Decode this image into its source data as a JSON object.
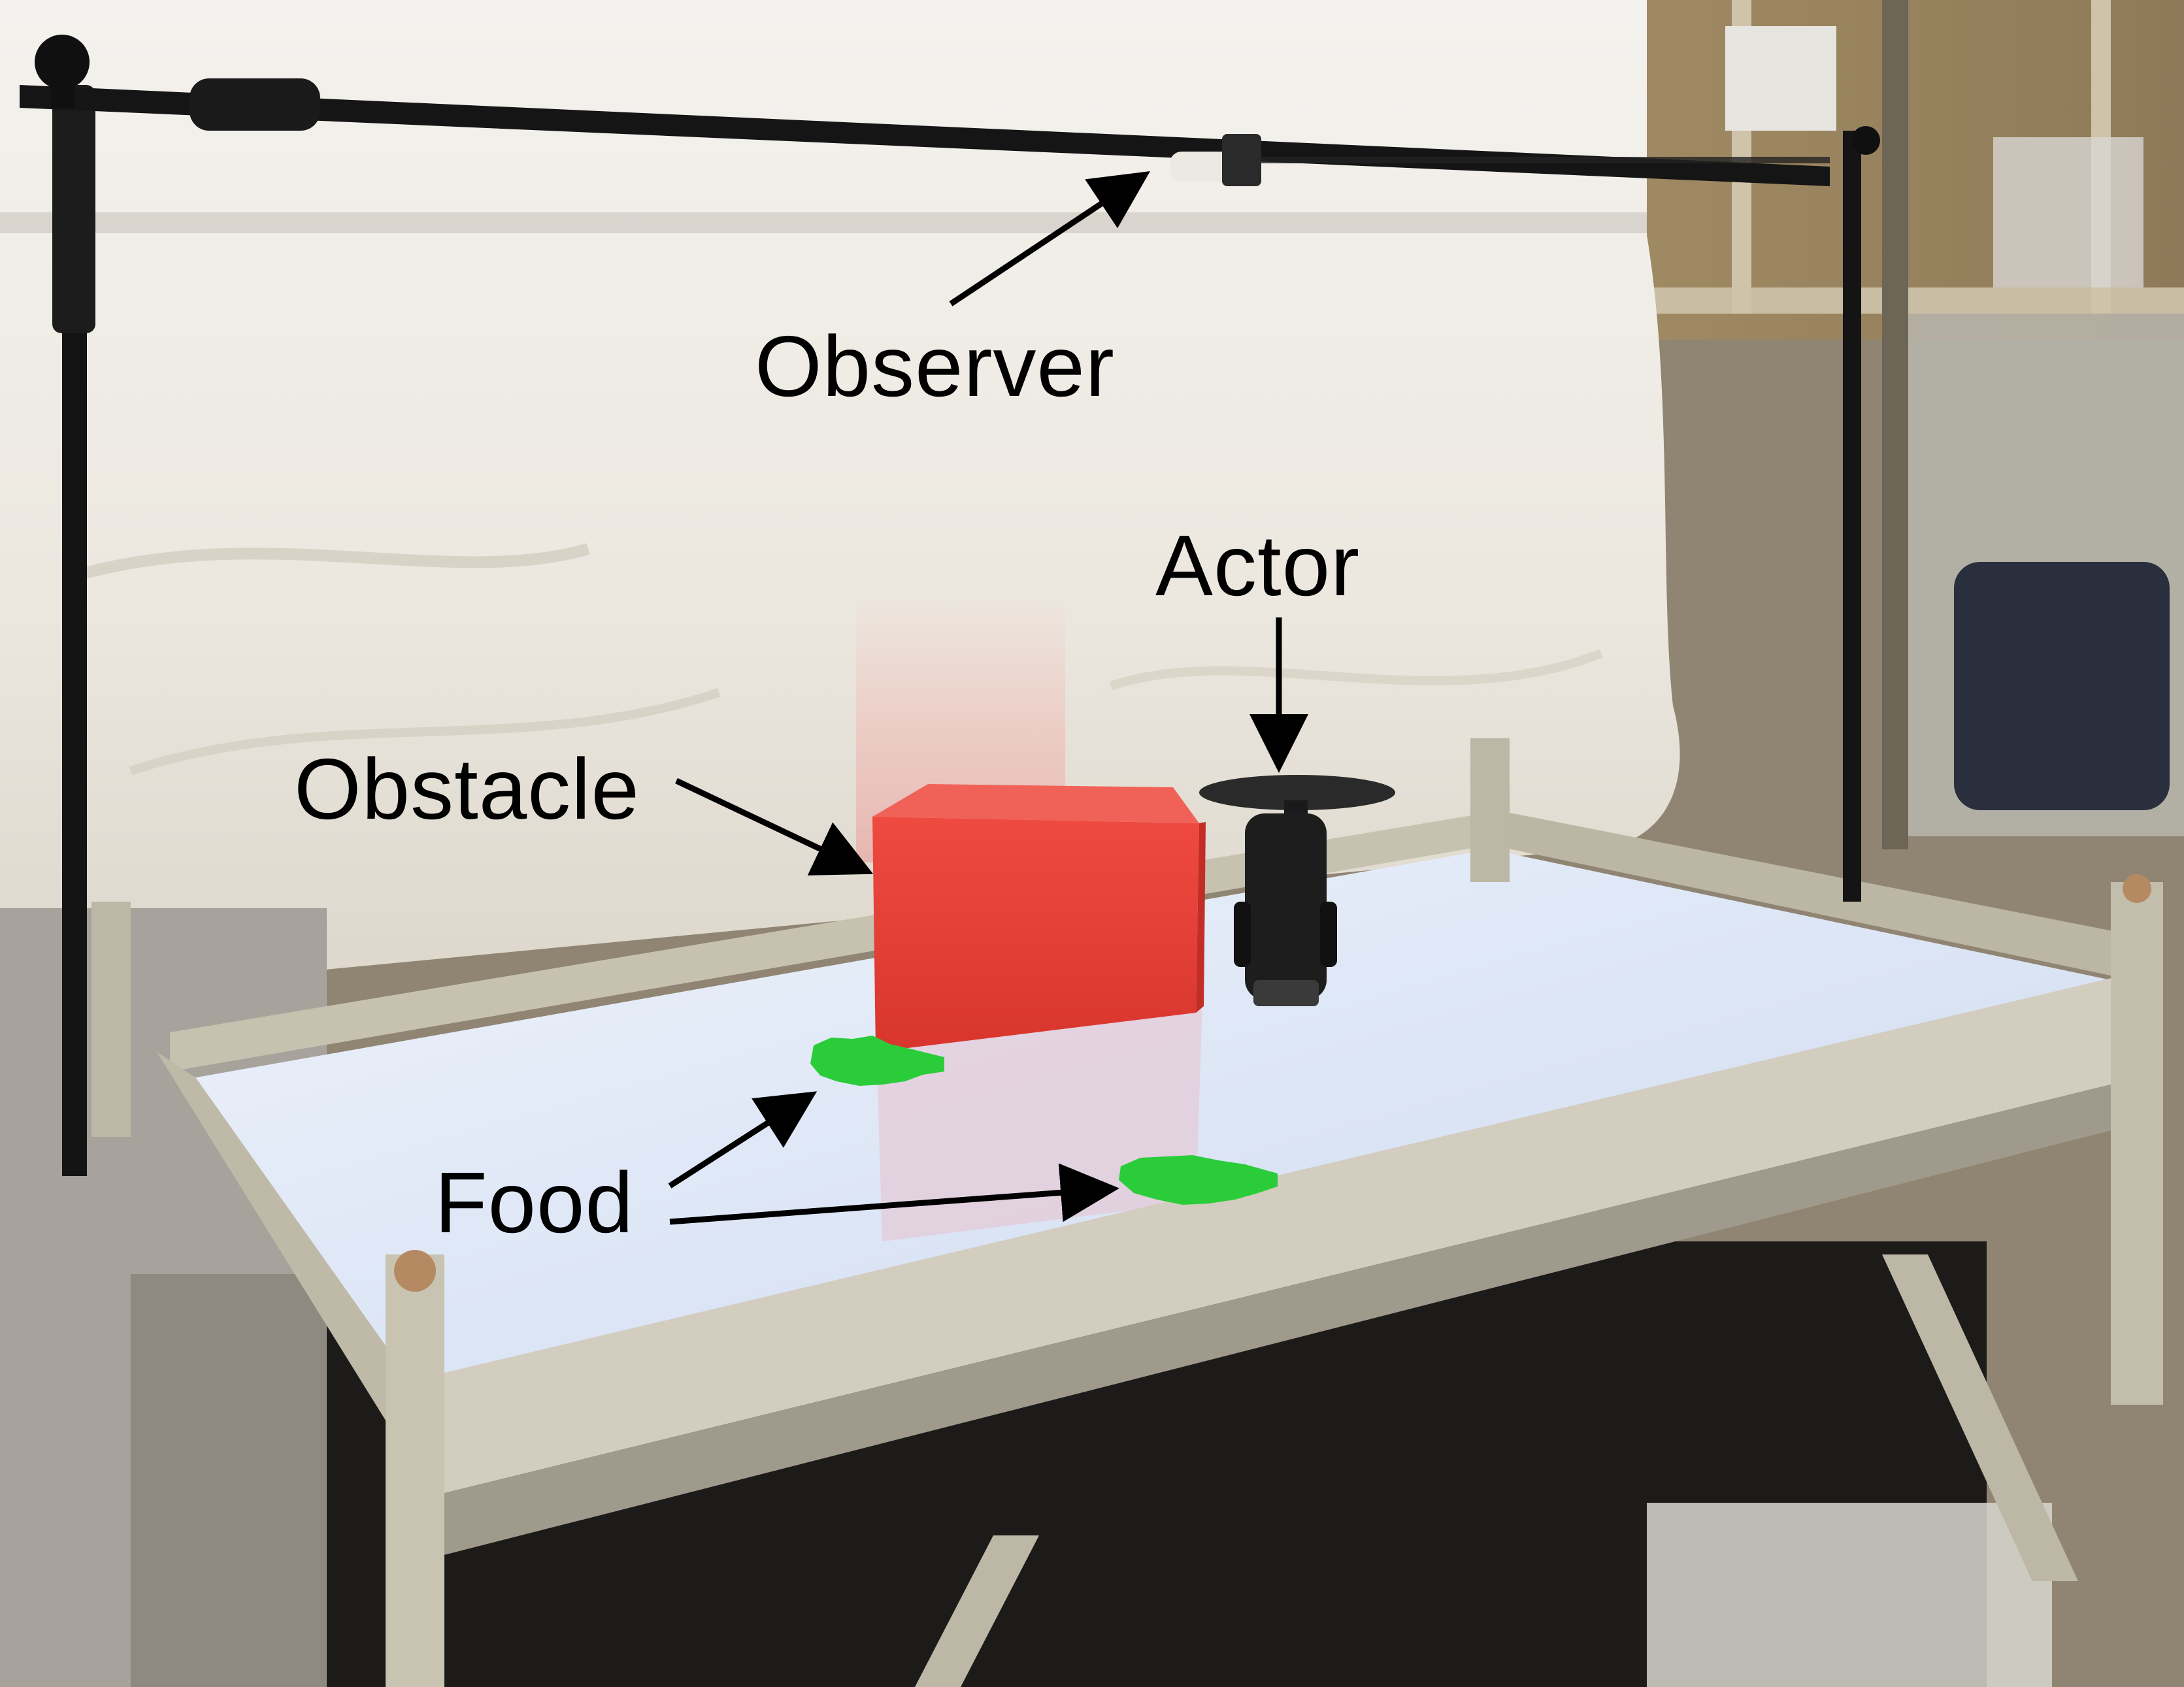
{
  "labels": {
    "observer": "Observer",
    "actor": "Actor",
    "obstacle": "Obstacle",
    "food": "Food"
  },
  "colors": {
    "obstacle_box": "#e53b33",
    "food_patch": "#2bcc3a",
    "sheet": "#efece6",
    "table_surface": "#dfe7f6",
    "frame_aluminium": "#c8c2b2",
    "stand": "#151515"
  }
}
